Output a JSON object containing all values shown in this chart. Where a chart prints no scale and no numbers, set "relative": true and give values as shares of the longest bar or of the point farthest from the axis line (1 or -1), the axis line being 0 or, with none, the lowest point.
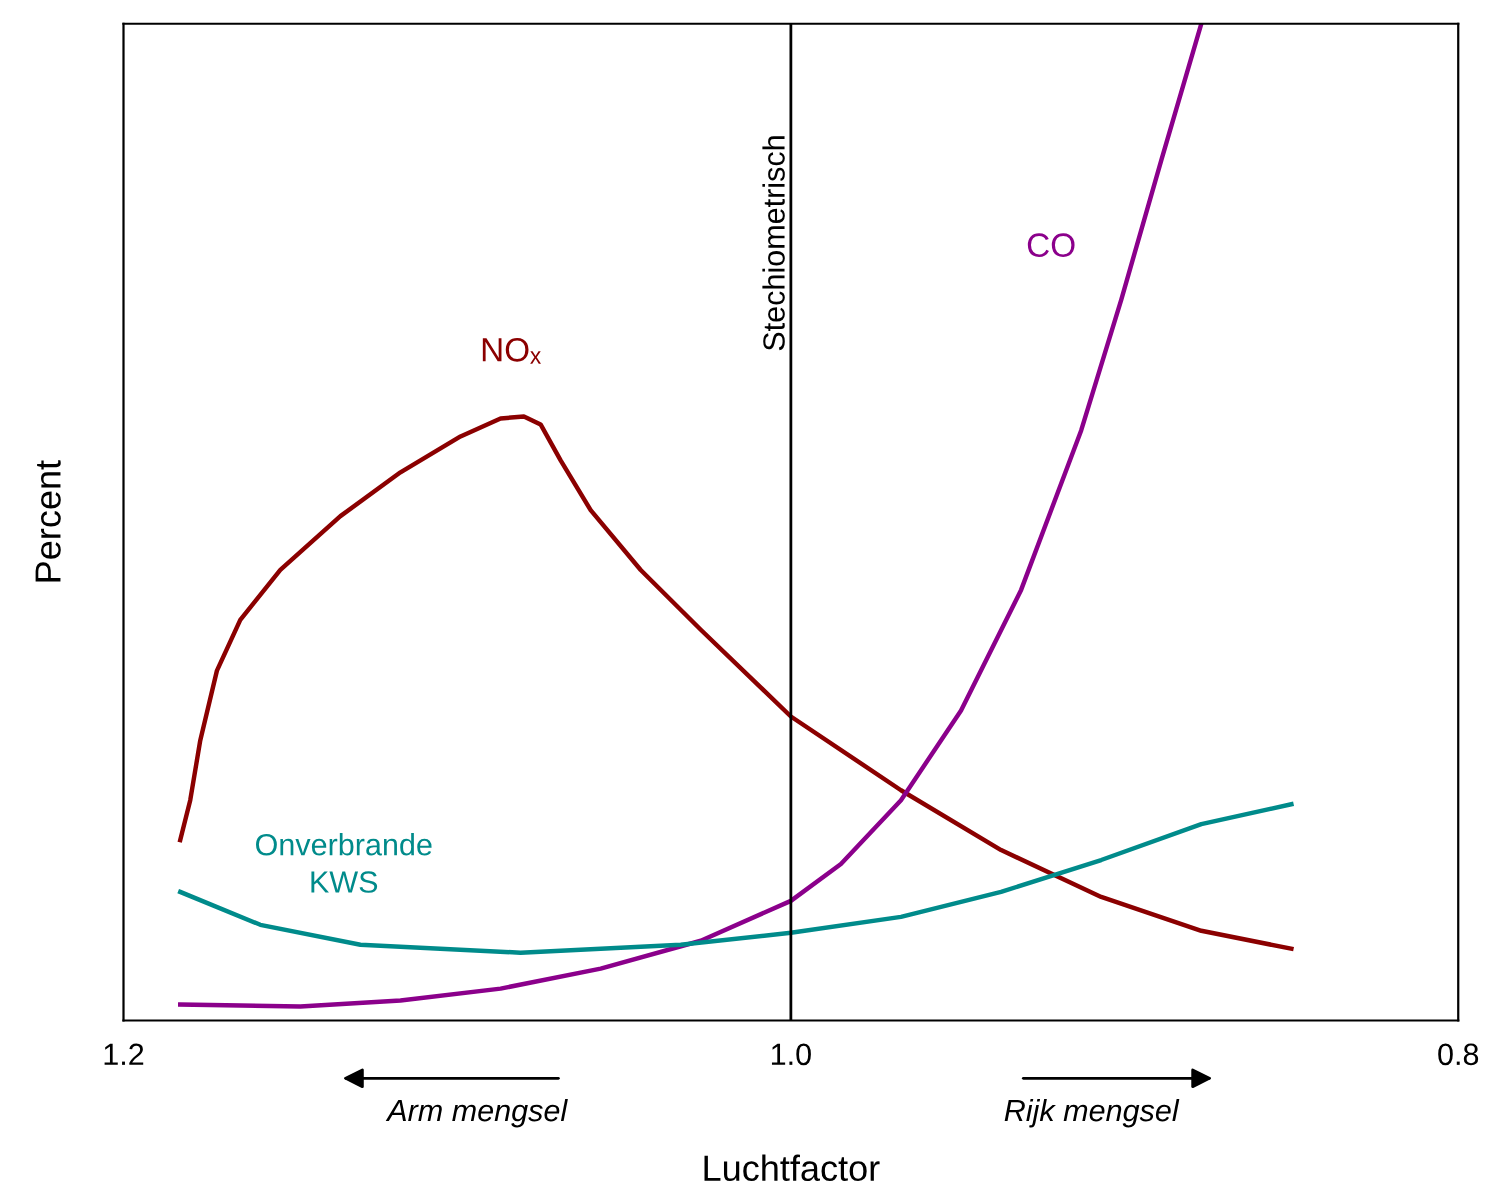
{
  "chart_data": {
    "type": "line",
    "xlabel": "Luchtfactor",
    "ylabel": "Percent",
    "relative": true,
    "xlim": [
      1.2,
      0.8
    ],
    "xticks": [
      {
        "value": 1.2,
        "label": "1.2"
      },
      {
        "value": 1.0,
        "label": "1.0"
      },
      {
        "value": 0.8,
        "label": "0.8"
      }
    ],
    "tick_labels": "x",
    "grid": false,
    "legend": false,
    "marker": "none",
    "line_style": "solid",
    "series": [
      {
        "name": "NOₓ",
        "color": "#8b0000",
        "x": [
          1.183,
          1.18,
          1.177,
          1.172,
          1.165,
          1.153,
          1.135,
          1.117,
          1.099,
          1.087,
          1.08,
          1.075,
          1.069,
          1.06,
          1.045,
          1.027,
          1.0,
          0.967,
          0.937,
          0.907,
          0.877,
          0.85
        ],
        "values": [
          0.181,
          0.221,
          0.281,
          0.351,
          0.402,
          0.452,
          0.506,
          0.55,
          0.586,
          0.604,
          0.606,
          0.598,
          0.562,
          0.512,
          0.452,
          0.392,
          0.305,
          0.231,
          0.171,
          0.124,
          0.09,
          0.072
        ]
      },
      {
        "name": "CO",
        "color": "#8b008b",
        "x": [
          1.183,
          1.147,
          1.117,
          1.087,
          1.057,
          1.027,
          1.0,
          0.985,
          0.967,
          0.949,
          0.931,
          0.913,
          0.901,
          0.889,
          0.877
        ],
        "values": [
          0.016,
          0.014,
          0.02,
          0.032,
          0.052,
          0.08,
          0.12,
          0.157,
          0.221,
          0.311,
          0.432,
          0.592,
          0.723,
          0.863,
          1.0
        ]
      },
      {
        "name": "Onverbrande\nKWS",
        "color": "#008b8b",
        "x": [
          1.183,
          1.159,
          1.129,
          1.081,
          1.033,
          1.0,
          0.967,
          0.937,
          0.907,
          0.877,
          0.85
        ],
        "values": [
          0.129,
          0.096,
          0.076,
          0.068,
          0.076,
          0.088,
          0.104,
          0.129,
          0.161,
          0.197,
          0.217
        ]
      }
    ],
    "ref_lines": [
      {
        "axis": "x",
        "value": 1.0,
        "label": "Stechiometrisch",
        "color": "#000000"
      }
    ],
    "annotations": [
      "Arm mengsel",
      "Rijk mengsel"
    ]
  }
}
